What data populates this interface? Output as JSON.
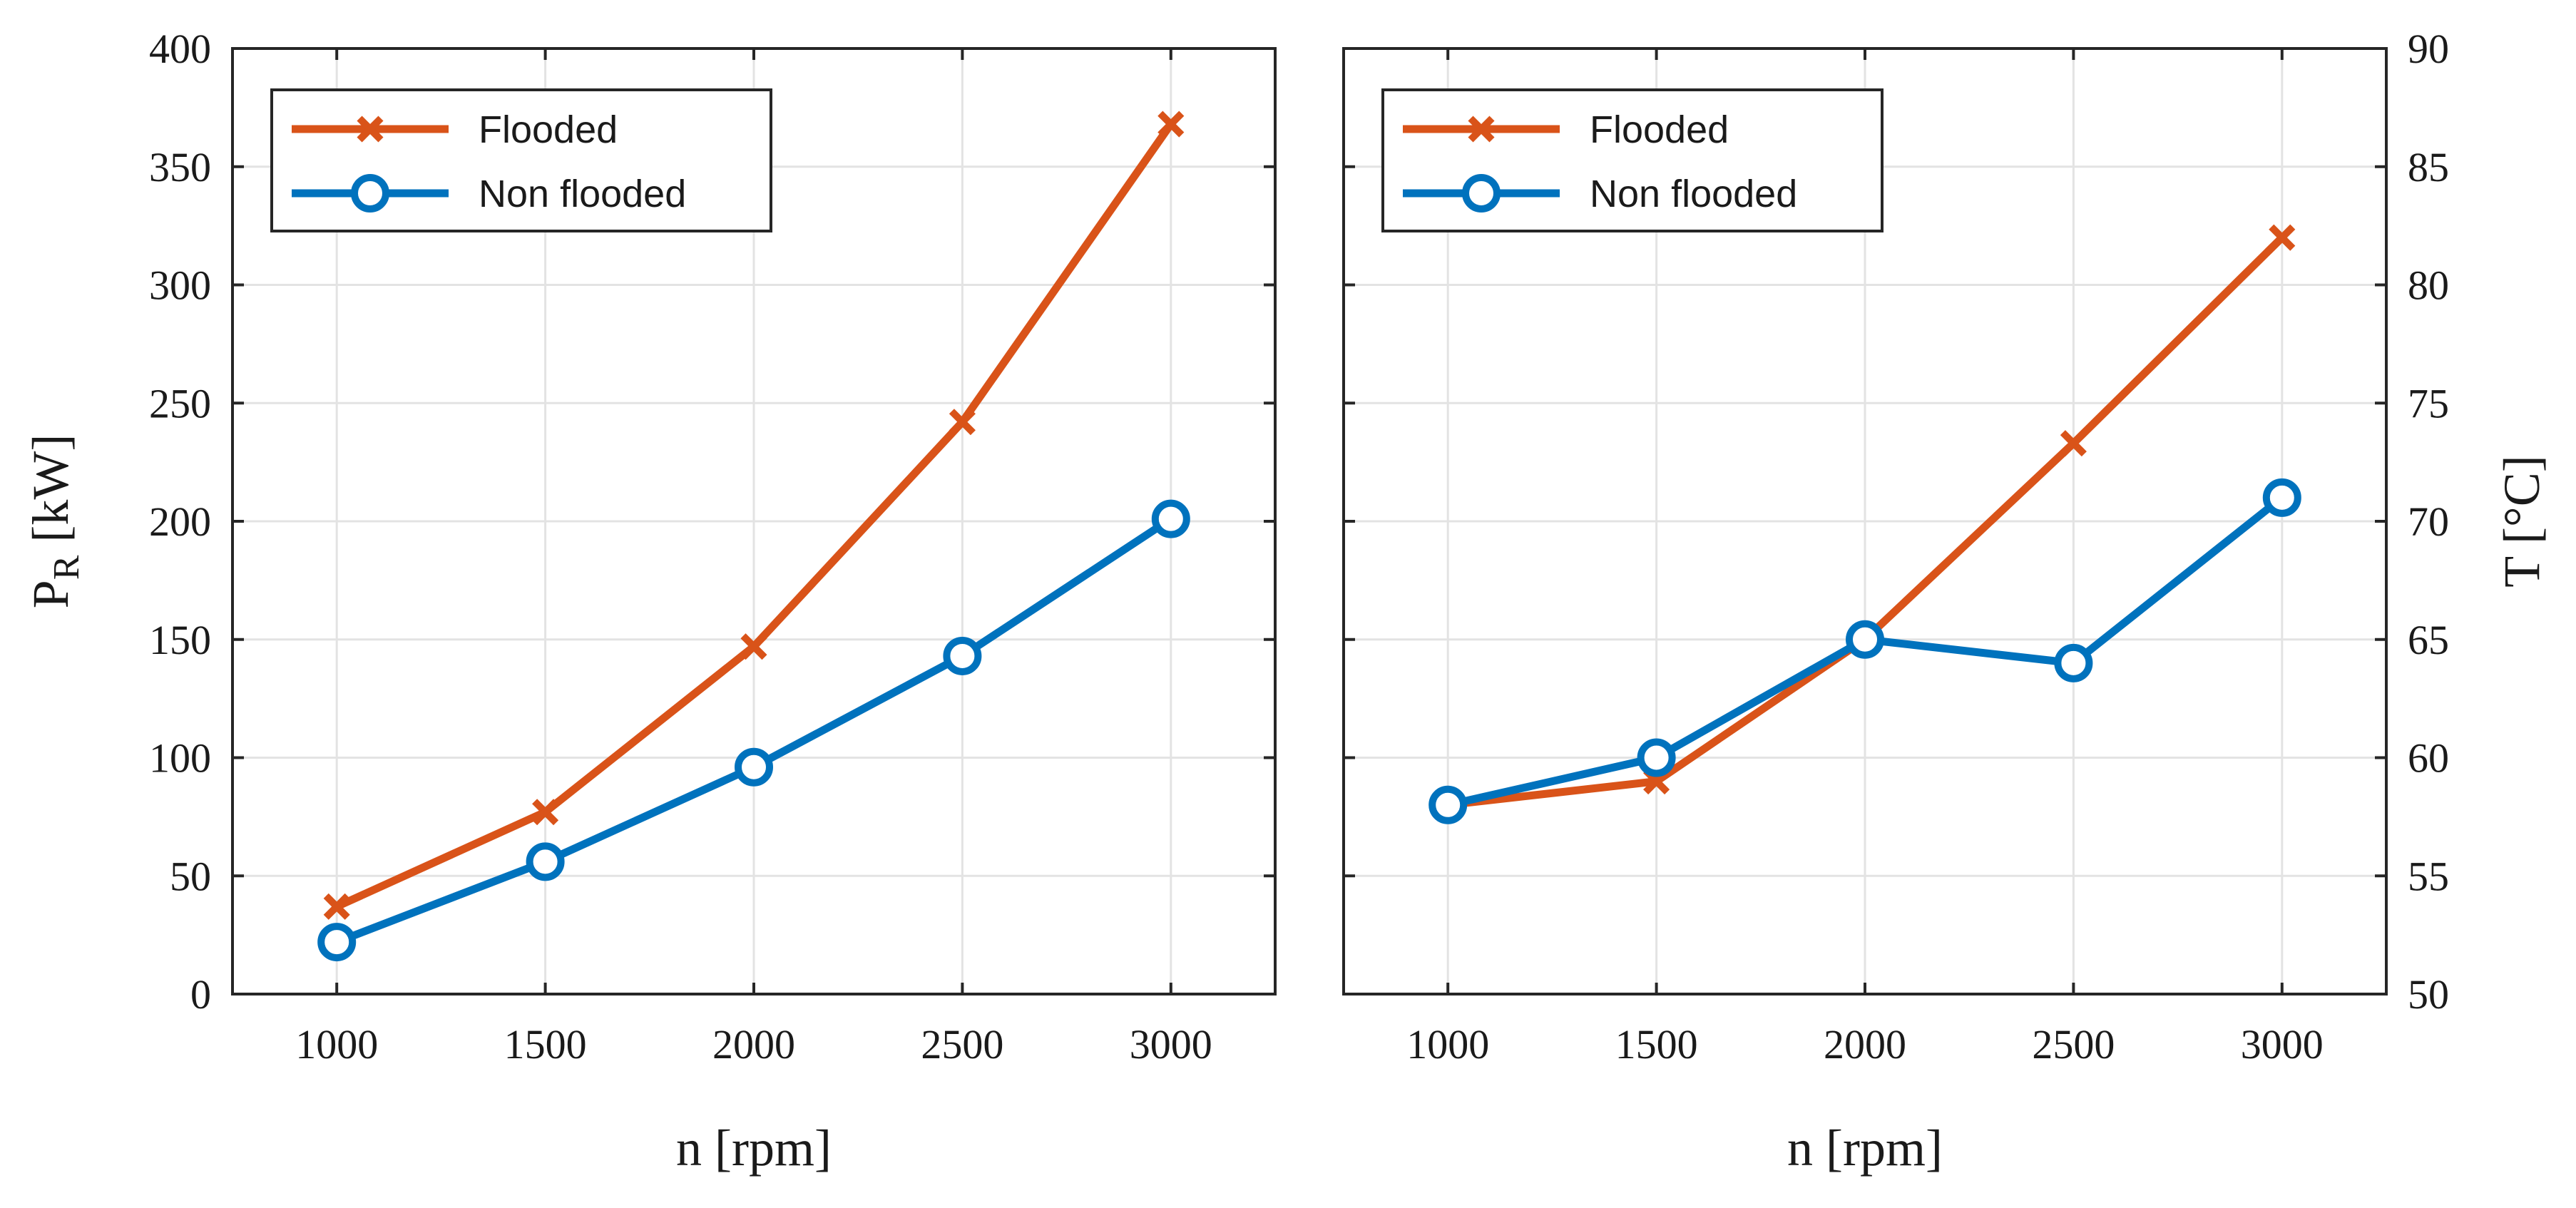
{
  "chart_data": [
    {
      "type": "line",
      "x": [
        1000,
        1500,
        2000,
        2500,
        3000
      ],
      "xlabel": "n [rpm]",
      "ylabel": "P_R [kW]",
      "ylabel_main": "P",
      "ylabel_sub": "R",
      "ylabel_unit": " [kW]",
      "xlim": [
        750,
        3250
      ],
      "ylim": [
        0,
        400
      ],
      "xticks": [
        1000,
        1500,
        2000,
        2500,
        3000
      ],
      "yticks": [
        0,
        50,
        100,
        150,
        200,
        250,
        300,
        350,
        400
      ],
      "yaxis_side": "left",
      "grid": true,
      "legend_position": "top-left",
      "series": [
        {
          "name": "Flooded",
          "values": [
            37,
            77,
            147,
            242,
            368
          ],
          "color": "#d95319",
          "marker": "x"
        },
        {
          "name": "Non flooded",
          "values": [
            22,
            56,
            96,
            143,
            201
          ],
          "color": "#0072bd",
          "marker": "circle"
        }
      ]
    },
    {
      "type": "line",
      "x": [
        1000,
        1500,
        2000,
        2500,
        3000
      ],
      "xlabel": "n [rpm]",
      "ylabel": "T [°C]",
      "xlim": [
        750,
        3250
      ],
      "ylim": [
        50,
        90
      ],
      "xticks": [
        1000,
        1500,
        2000,
        2500,
        3000
      ],
      "yticks": [
        50,
        55,
        60,
        65,
        70,
        75,
        80,
        85,
        90
      ],
      "yaxis_side": "right",
      "grid": true,
      "legend_position": "top-left",
      "series": [
        {
          "name": "Flooded",
          "values": [
            58,
            59,
            65,
            73.3,
            82
          ],
          "color": "#d95319",
          "marker": "x"
        },
        {
          "name": "Non flooded",
          "values": [
            58,
            60,
            65,
            64,
            71
          ],
          "color": "#0072bd",
          "marker": "circle"
        }
      ]
    }
  ]
}
